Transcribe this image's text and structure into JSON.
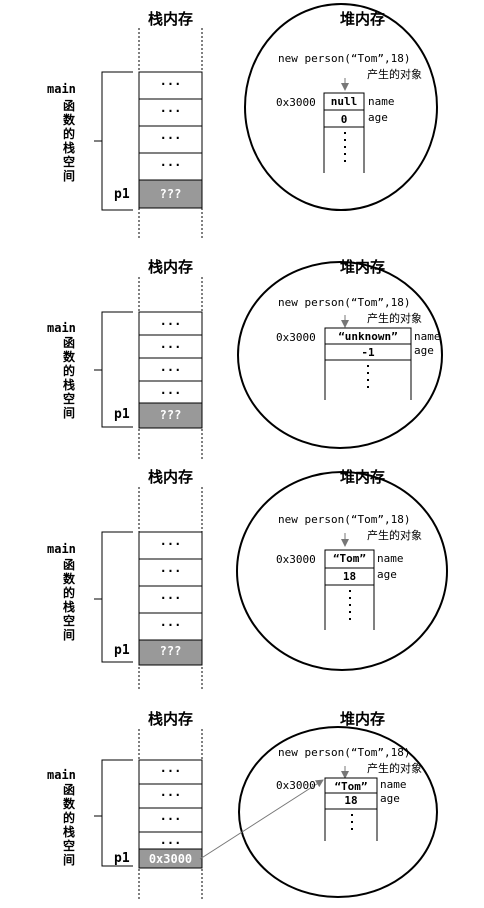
{
  "stack_title": "栈内存",
  "heap_title": "堆内存",
  "main_label": "main",
  "main_cjk": "函数的栈空间",
  "p1_label": "p1",
  "ellipsis": "···",
  "addr": "0x3000",
  "new_expr": "new person(“Tom”,18)",
  "produced": "产生的对象",
  "name_label": "name",
  "age_label": "age",
  "panels": [
    {
      "p1_value": "???",
      "name_value": "null",
      "age_value": "0"
    },
    {
      "p1_value": "???",
      "name_value": "“unknown”",
      "age_value": "-1"
    },
    {
      "p1_value": "???",
      "name_value": "“Tom”",
      "age_value": "18"
    },
    {
      "p1_value": "0x3000",
      "name_value": "“Tom”",
      "age_value": "18"
    }
  ],
  "colors": {
    "line": "#000000",
    "gray_cell": "#999999",
    "arrow": "#777777"
  }
}
